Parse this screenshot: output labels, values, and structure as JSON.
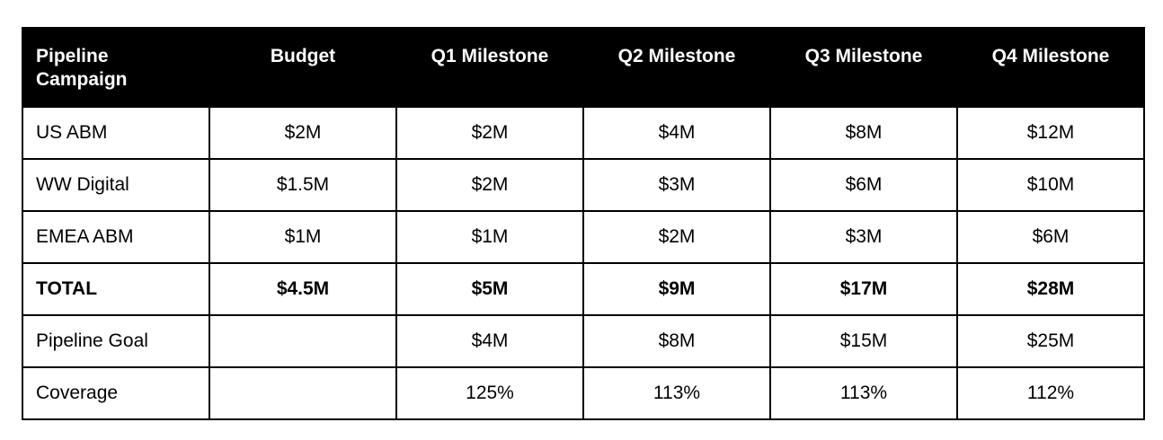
{
  "table": {
    "headers": [
      "Pipeline\nCampaign",
      "Budget",
      "Q1 Milestone",
      "Q2 Milestone",
      "Q3 Milestone",
      "Q4 Milestone"
    ],
    "header_first_lines": [
      "Pipeline",
      "Campaign"
    ],
    "rows": [
      {
        "cells": [
          "US ABM",
          "$2M",
          "$2M",
          "$4M",
          "$8M",
          "$12M"
        ],
        "bold": false
      },
      {
        "cells": [
          "WW Digital",
          "$1.5M",
          "$2M",
          "$3M",
          "$6M",
          "$10M"
        ],
        "bold": false
      },
      {
        "cells": [
          "EMEA ABM",
          "$1M",
          "$1M",
          "$2M",
          "$3M",
          "$6M"
        ],
        "bold": false
      },
      {
        "cells": [
          "TOTAL",
          "$4.5M",
          "$5M",
          "$9M",
          "$17M",
          "$28M"
        ],
        "bold": true
      },
      {
        "cells": [
          "Pipeline Goal",
          "",
          "$4M",
          "$8M",
          "$15M",
          "$25M"
        ],
        "bold": false
      },
      {
        "cells": [
          "Coverage",
          "",
          "125%",
          "113%",
          "113%",
          "112%"
        ],
        "bold": false
      }
    ]
  },
  "colors": {
    "header_bg": "#000000",
    "header_text": "#ffffff",
    "border": "#000000"
  }
}
